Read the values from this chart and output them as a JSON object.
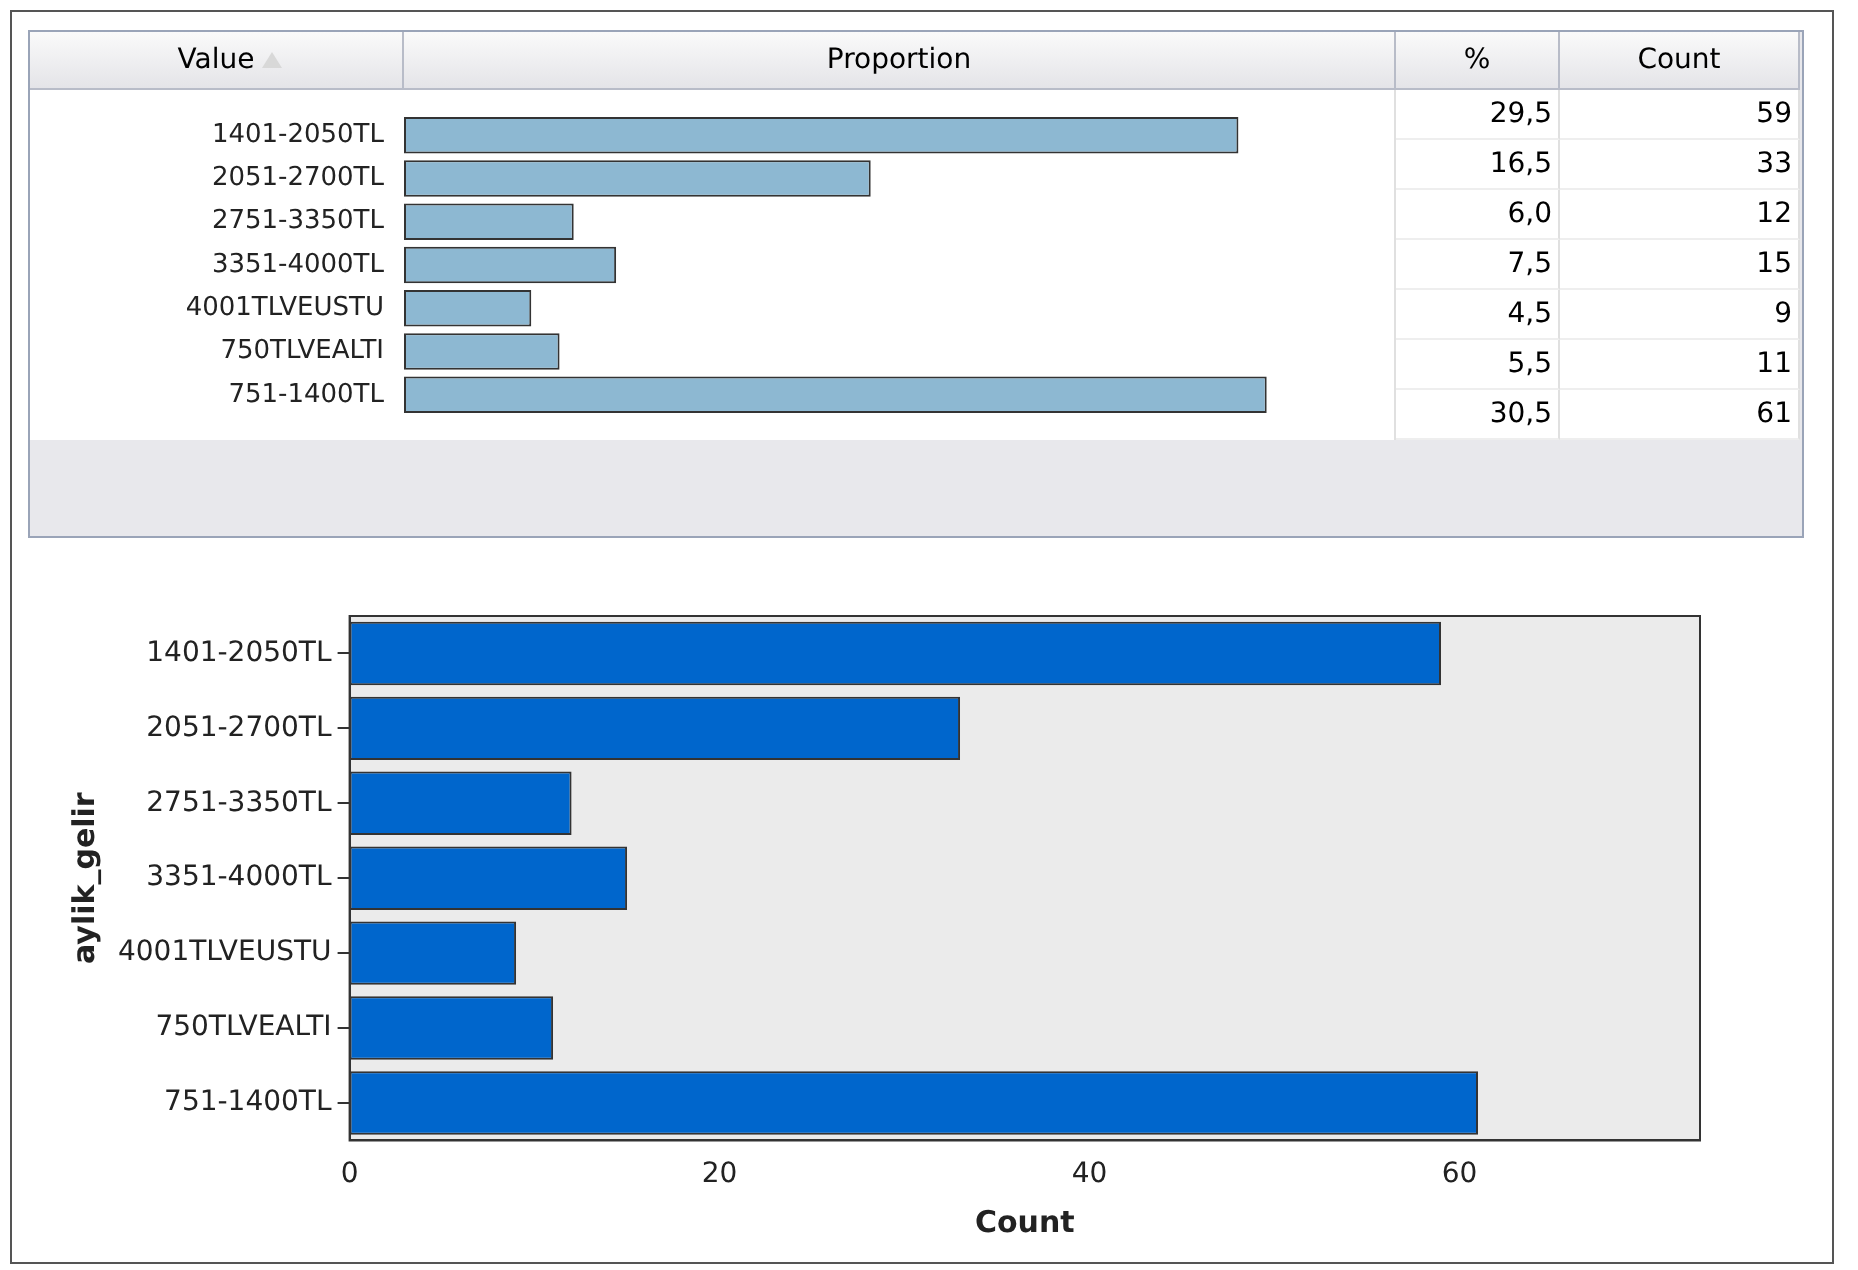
{
  "chart_data": [
    {
      "type": "bar",
      "orientation": "horizontal",
      "ylabel": "Value",
      "xlabel": "Proportion",
      "categories": [
        "1401-2050TL",
        "2051-2700TL",
        "2751-3350TL",
        "3351-4000TL",
        "4001TLVEUSTU",
        "750TLVEALTI",
        "751-1400TL"
      ],
      "values": [
        29.5,
        16.5,
        6.0,
        7.5,
        4.5,
        5.5,
        30.5
      ],
      "color": "#8db8d2",
      "tick_labels": "y",
      "value_labels": [
        "29,5",
        "16,5",
        "6,0",
        "7,5",
        "4,5",
        "5,5",
        "30,5"
      ],
      "legend": false,
      "grid": false,
      "annotations": [
        "%",
        "Count",
        "59",
        "33",
        "12",
        "15",
        "9",
        "11",
        "61"
      ]
    },
    {
      "type": "bar",
      "orientation": "horizontal",
      "xlabel": "Count",
      "ylabel": "aylik_gelir",
      "categories": [
        "1401-2050TL",
        "2051-2700TL",
        "2751-3350TL",
        "3351-4000TL",
        "4001TLVEUSTU",
        "750TLVEALTI",
        "751-1400TL"
      ],
      "values": [
        59,
        33,
        12,
        15,
        9,
        11,
        61
      ],
      "color": "#0066cc",
      "xlim": [
        0,
        73
      ],
      "xticks": [
        0,
        20,
        40,
        60
      ],
      "legend": false,
      "grid": false
    }
  ]
}
